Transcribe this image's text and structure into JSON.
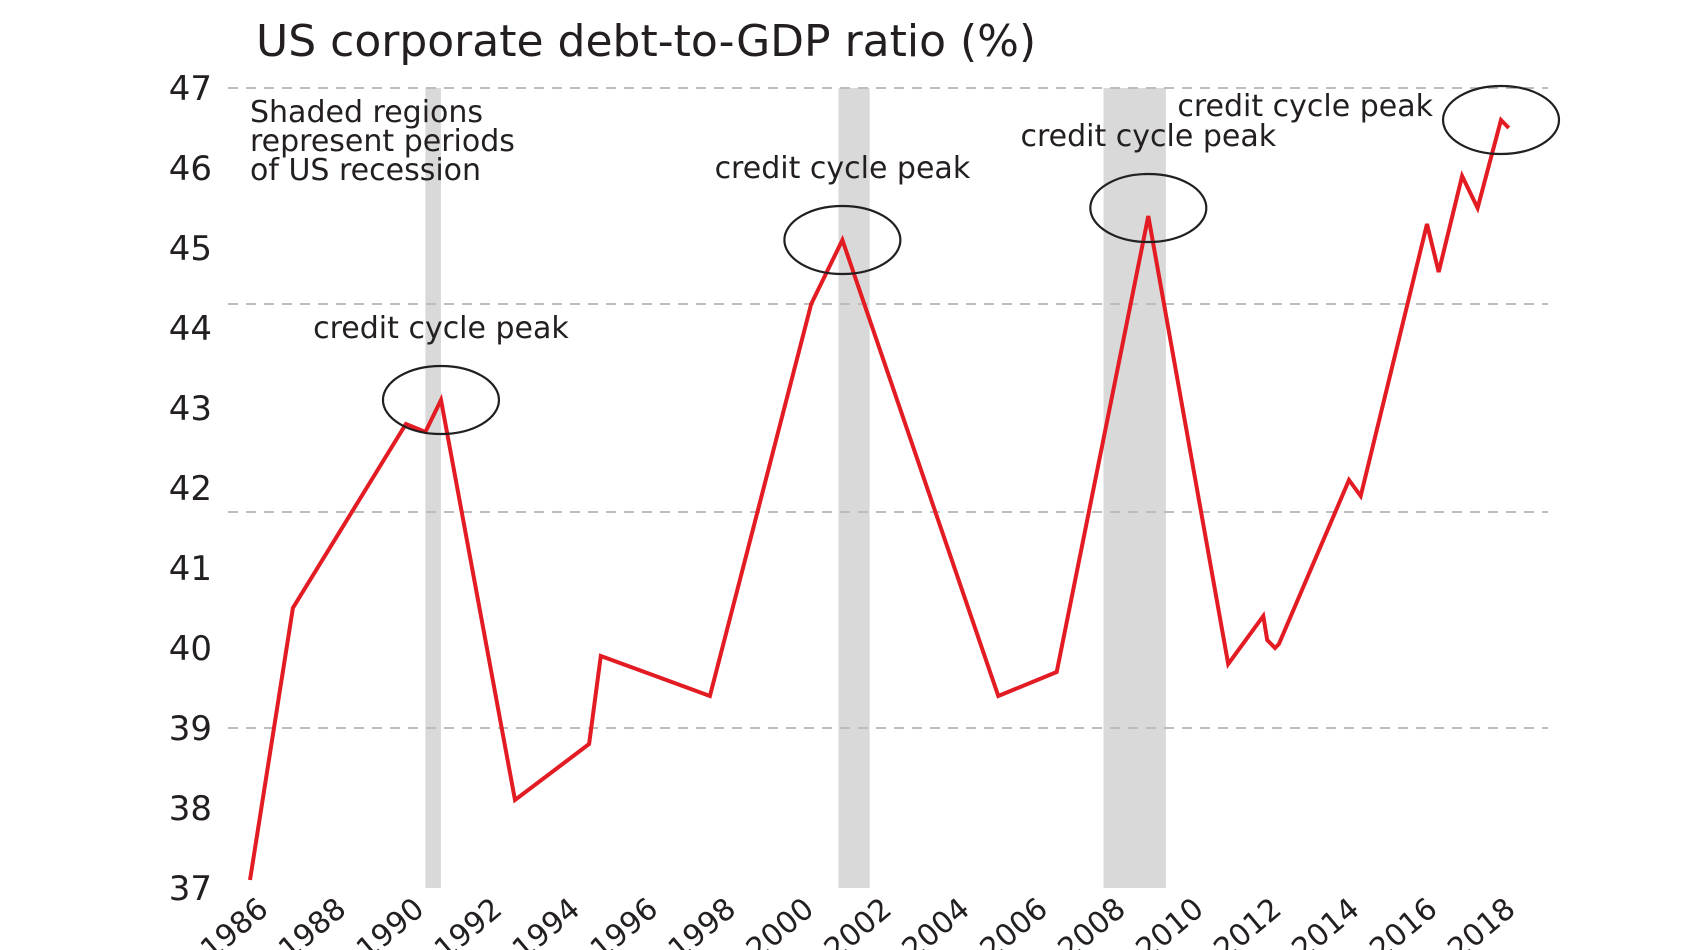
{
  "chart_data": {
    "type": "line",
    "title": "US corporate debt-to-GDP ratio (%)",
    "xlabel": "",
    "ylabel": "",
    "xlim": [
      1986,
      2019.1
    ],
    "ylim": [
      37,
      47
    ],
    "yticks": [
      37,
      38,
      39,
      40,
      41,
      42,
      43,
      44,
      45,
      46,
      47
    ],
    "ytick_labels": [
      "37",
      "38",
      "39",
      "40",
      "41",
      "42",
      "43",
      "44",
      "45",
      "46",
      "47"
    ],
    "xticks": [
      1986,
      1988,
      1990,
      1992,
      1994,
      1996,
      1998,
      2000,
      2002,
      2004,
      2006,
      2008,
      2010,
      2012,
      2014,
      2016,
      2018
    ],
    "xtick_labels": [
      "1986",
      "1988",
      "1990",
      "1992",
      "1994",
      "1996",
      "1998",
      "2000",
      "2002",
      "2004",
      "2006",
      "2008",
      "2010",
      "2012",
      "2014",
      "2016",
      "2018"
    ],
    "gridlines_y": [
      39,
      41.7,
      44.3,
      47
    ],
    "note_lines": [
      "Shaded regions",
      "represent periods",
      "of US recession"
    ],
    "recessions": [
      {
        "start": 1990.5,
        "end": 1990.9
      },
      {
        "start": 2001.1,
        "end": 2001.9
      },
      {
        "start": 2007.9,
        "end": 2009.5
      }
    ],
    "series": [
      {
        "name": "US corporate debt-to-GDP ratio",
        "color": "#e31b23",
        "x": [
          1986,
          1987.1,
          1990,
          1990.5,
          1990.9,
          1992.8,
          1994.7,
          1995,
          1997.8,
          2000.4,
          2001.2,
          2005.2,
          2006.7,
          2009.05,
          2011.1,
          2012,
          2012.1,
          2012.3,
          2012.4,
          2014.2,
          2014.5,
          2016.2,
          2016.5,
          2017.1,
          2017.5,
          2018.1,
          2018.3
        ],
        "y": [
          37.1,
          40.5,
          42.8,
          42.7,
          43.1,
          38.1,
          38.8,
          39.9,
          39.4,
          44.3,
          45.1,
          39.4,
          39.7,
          45.4,
          39.8,
          40.4,
          40.1,
          40.0,
          40.05,
          42.1,
          41.9,
          45.3,
          44.7,
          45.9,
          45.5,
          46.6,
          46.5
        ]
      }
    ],
    "annotations": [
      {
        "text": "credit cycle peak",
        "x": 1990.9,
        "y": 43.1
      },
      {
        "text": "credit cycle peak",
        "x": 2001.2,
        "y": 45.1
      },
      {
        "text": "credit cycle peak",
        "x": 2009.05,
        "y": 45.5
      },
      {
        "text": "credit cycle peak",
        "x": 2018.1,
        "y": 46.6
      }
    ]
  }
}
